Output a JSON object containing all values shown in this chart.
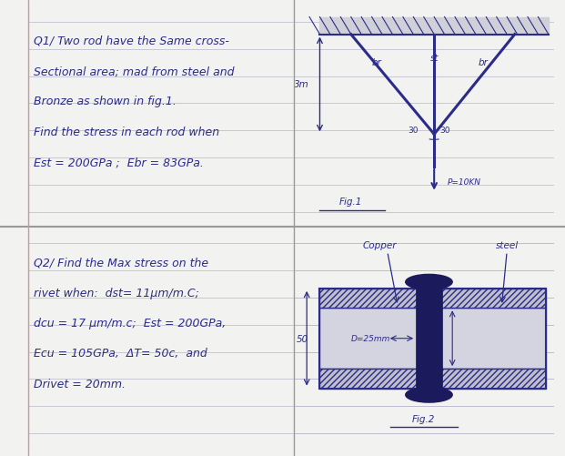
{
  "ink": "#2b2b8a",
  "bg_page": "#f2f2f0",
  "bg_left_margin": "#d8d8d4",
  "bg_notebook": "#eeeef0",
  "rule_color": "#b8b8cc",
  "hatch_bg": "#d0d0d8",
  "rivet_color": "#1a1a5c",
  "plate_fill": "#d4d4e0",
  "plate_hatch_fill": "#c0c0cc",
  "q1_lines": [
    "Q1/ Two rod have the Same cross-",
    "Sectional area; mad from steel and",
    "Bronze as shown in fig.1.",
    "Find the stress in each rod when",
    "Est = 200GPa ;  Ebr = 83GPa."
  ],
  "q2_lines": [
    "Q2/ Find the Max stress on the",
    "rivet when:  dst= 11μm/m.C;",
    "dcu = 17 μm/m.c;  Est = 200GPa,",
    "Ecu = 105GPa,  ΔT= 50c,  and",
    "Drivet = 20mm."
  ],
  "fig1_label": "Fig.1",
  "p_label": "P=10KN",
  "dim_3m": "3m",
  "angle1": "30",
  "angle2": "30",
  "br_label": "br",
  "st_label": "st",
  "copper_label": "Copper",
  "steel_label": "steel",
  "d_label": "D=25mm",
  "dim_50": "50",
  "fig2_label": "Fig.2"
}
